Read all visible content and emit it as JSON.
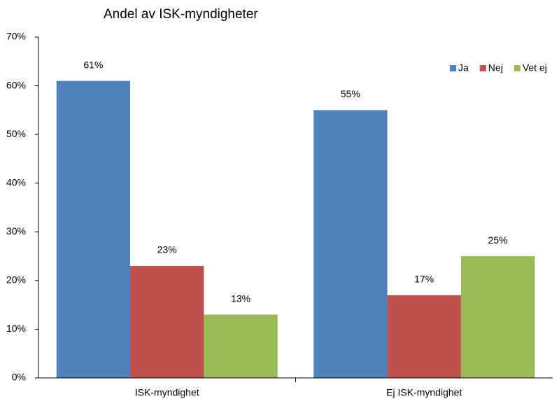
{
  "chart_data": {
    "type": "bar",
    "title": "Andel av ISK-myndigheter",
    "categories": [
      "ISK-myndighet",
      "Ej ISK-myndighet"
    ],
    "series": [
      {
        "name": "Ja",
        "color": "#4f81bd",
        "values": [
          61,
          55
        ],
        "value_labels": [
          "61%",
          "55%"
        ]
      },
      {
        "name": "Nej",
        "color": "#c0504d",
        "values": [
          23,
          17
        ],
        "value_labels": [
          "23%",
          "17%"
        ]
      },
      {
        "name": "Vet ej",
        "color": "#9bbb59",
        "values": [
          13,
          25
        ],
        "value_labels": [
          "13%",
          "25%"
        ]
      }
    ],
    "ylim": [
      0,
      70
    ],
    "yticks": [
      {
        "value": 0,
        "label": "0%"
      },
      {
        "value": 10,
        "label": "10%"
      },
      {
        "value": 20,
        "label": "20%"
      },
      {
        "value": 30,
        "label": "30%"
      },
      {
        "value": 40,
        "label": "40%"
      },
      {
        "value": 50,
        "label": "50%"
      },
      {
        "value": 60,
        "label": "60%"
      },
      {
        "value": 70,
        "label": "70%"
      }
    ],
    "grid": false,
    "legend": "upper right"
  }
}
